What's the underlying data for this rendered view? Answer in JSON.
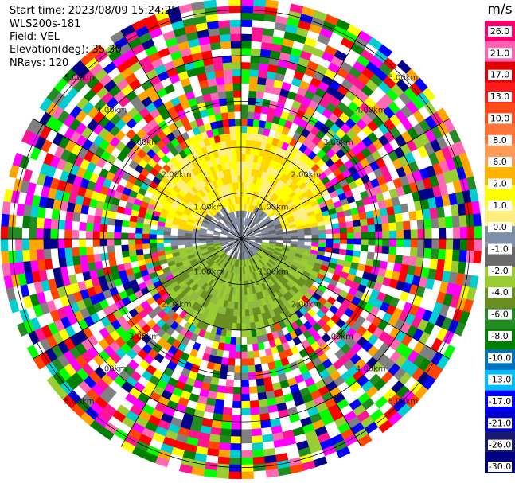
{
  "header": {
    "start_time": "Start time: 2023/08/09 15:24:25",
    "station": "WLS200s-181",
    "field": "Field: VEL",
    "elevation": "Elevation(deg): 35.30",
    "nrays": "NRays: 120"
  },
  "chart_data": {
    "type": "heatmap",
    "projection": "polar-ppi",
    "field": "VEL",
    "units": "m/s",
    "rays": 120,
    "ring_labels_km": [
      "1.00km",
      "2.00km",
      "3.00km",
      "4.00km",
      "5.00km"
    ],
    "range_km": [
      0,
      5.25
    ],
    "colorbar": {
      "label": "m/s",
      "ticks": [
        "26.0",
        "21.0",
        "17.0",
        "13.0",
        "10.0",
        "8.0",
        "6.0",
        "2.0",
        "1.0",
        "0.0",
        "-1.0",
        "-2.0",
        "-4.0",
        "-6.0",
        "-8.0",
        "-10.0",
        "-13.0",
        "-17.0",
        "-21.0",
        "-26.0",
        "-30.0"
      ],
      "colors": [
        "#f5006e",
        "#ff63b4",
        "#e00000",
        "#ff1a1a",
        "#ff4a1a",
        "#ff7436",
        "#ff9a57",
        "#ffb300",
        "#ffff00",
        "#ffee80",
        "#7f8fa8",
        "#696969",
        "#9acd32",
        "#6b8e23",
        "#228b22",
        "#008000",
        "#0072bd",
        "#00bfff",
        "#0000ff",
        "#0000cd",
        "#191970",
        "#000080"
      ]
    },
    "pattern": {
      "north_near_km": 1.1,
      "north_far_km": 2.4,
      "south_near_km": 0.9,
      "south_far_km": 2.2,
      "noise_colors": [
        "#ff00ff",
        "#ff1493",
        "#ff0000",
        "#ff4500",
        "#ffff00",
        "#ffa500",
        "#00ff00",
        "#008000",
        "#0000ff",
        "#00008b",
        "#808080",
        "#ffffff",
        "#ff69b4",
        "#228b22",
        "#9acd32",
        "#00ced1"
      ]
    }
  }
}
